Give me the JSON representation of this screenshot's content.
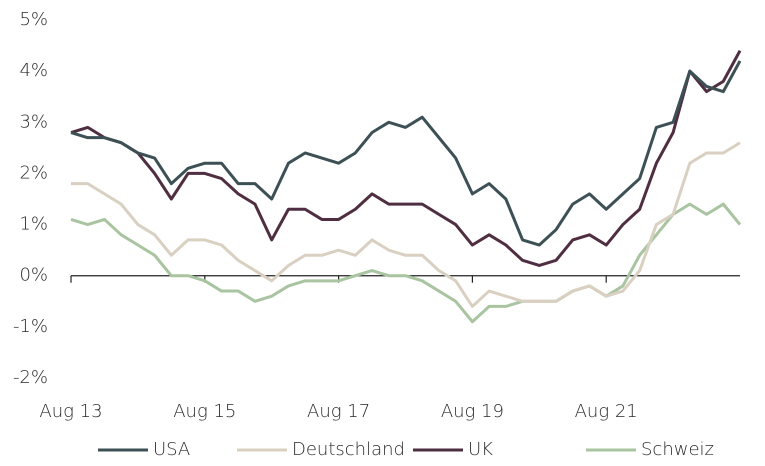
{
  "chart_data": {
    "type": "line",
    "categories": [
      "Aug 13",
      null,
      null,
      null,
      null,
      null,
      null,
      null,
      "Aug 15",
      null,
      null,
      null,
      null,
      null,
      null,
      null,
      "Aug 17",
      null,
      null,
      null,
      null,
      null,
      null,
      null,
      "Aug 19",
      null,
      null,
      null,
      null,
      null,
      null,
      null,
      "Aug 21",
      null,
      null,
      null,
      null,
      null,
      null,
      null,
      null
    ],
    "series": [
      {
        "name": "Schweiz",
        "color": "#a9c4a0",
        "values": [
          1.1,
          1.0,
          1.1,
          0.8,
          0.6,
          0.4,
          0.0,
          0.0,
          -0.1,
          -0.3,
          -0.3,
          -0.5,
          -0.4,
          -0.2,
          -0.1,
          -0.1,
          -0.1,
          0.0,
          0.1,
          0.0,
          0.0,
          -0.1,
          -0.3,
          -0.5,
          -0.9,
          -0.6,
          -0.6,
          -0.5,
          -0.5,
          -0.5,
          -0.3,
          -0.2,
          -0.4,
          -0.2,
          0.4,
          0.8,
          1.2,
          1.4,
          1.2,
          1.4,
          1.0
        ]
      },
      {
        "name": "Deutschland",
        "color": "#d9d0c2",
        "values": [
          1.8,
          1.8,
          1.6,
          1.4,
          1.0,
          0.8,
          0.4,
          0.7,
          0.7,
          0.6,
          0.3,
          0.1,
          -0.1,
          0.2,
          0.4,
          0.4,
          0.5,
          0.4,
          0.7,
          0.5,
          0.4,
          0.4,
          0.1,
          -0.1,
          -0.6,
          -0.3,
          -0.4,
          -0.5,
          -0.5,
          -0.5,
          -0.3,
          -0.2,
          -0.4,
          -0.3,
          0.1,
          1.0,
          1.2,
          2.2,
          2.4,
          2.4,
          2.6
        ]
      },
      {
        "name": "UK",
        "color": "#4e2e40",
        "values": [
          2.8,
          2.9,
          2.7,
          2.6,
          2.4,
          2.0,
          1.5,
          2.0,
          2.0,
          1.9,
          1.6,
          1.4,
          0.7,
          1.3,
          1.3,
          1.1,
          1.1,
          1.3,
          1.6,
          1.4,
          1.4,
          1.4,
          1.2,
          1.0,
          0.6,
          0.8,
          0.6,
          0.3,
          0.2,
          0.3,
          0.7,
          0.8,
          0.6,
          1.0,
          1.3,
          2.2,
          2.8,
          4.0,
          3.6,
          3.8,
          4.4
        ]
      },
      {
        "name": "USA",
        "color": "#3d5055",
        "values": [
          2.8,
          2.7,
          2.7,
          2.6,
          2.4,
          2.3,
          1.8,
          2.1,
          2.2,
          2.2,
          1.8,
          1.8,
          1.5,
          2.2,
          2.4,
          2.3,
          2.2,
          2.4,
          2.8,
          3.0,
          2.9,
          3.1,
          2.7,
          2.3,
          1.6,
          1.8,
          1.5,
          0.7,
          0.6,
          0.9,
          1.4,
          1.6,
          1.3,
          1.6,
          1.9,
          2.9,
          3.0,
          4.0,
          3.7,
          3.6,
          4.2
        ]
      }
    ],
    "legend_order": [
      3,
      1,
      2,
      0
    ],
    "ylim": [
      -2,
      5
    ],
    "yticks": [
      {
        "value": -2,
        "label": "-2%"
      },
      {
        "value": -1,
        "label": "-1%"
      },
      {
        "value": 0,
        "label": "0%"
      },
      {
        "value": 1,
        "label": "1%"
      },
      {
        "value": 2,
        "label": "2%"
      },
      {
        "value": 3,
        "label": "3%"
      },
      {
        "value": 4,
        "label": "4%"
      },
      {
        "value": 5,
        "label": "5%"
      }
    ],
    "grid": false,
    "legend": "bottom"
  }
}
